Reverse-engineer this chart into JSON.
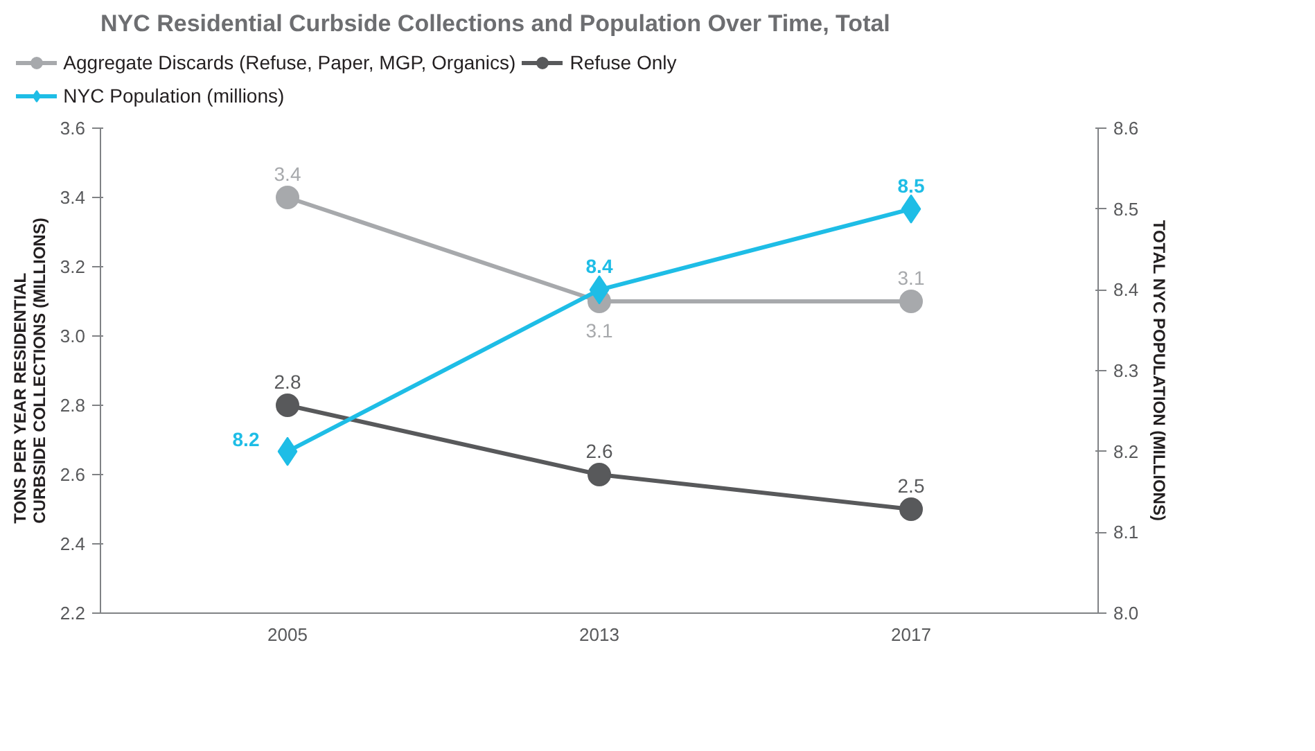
{
  "chart_data": {
    "type": "line",
    "title": "NYC Residential Curbside Collections and Population Over Time, Total",
    "categories": [
      "2005",
      "2013",
      "2017"
    ],
    "series": [
      {
        "name": "Aggregate Discards (Refuse, Paper, MGP, Organics)",
        "color": "#a7a9ac",
        "marker": "circle",
        "values": [
          3.4,
          3.1,
          3.1
        ]
      },
      {
        "name": "Refuse Only",
        "color": "#58595b",
        "marker": "circle",
        "values": [
          2.8,
          2.6,
          2.5
        ]
      },
      {
        "name": "NYC Population (millions)",
        "color": "#1ebde6",
        "marker": "diamond",
        "axis": "y2",
        "values": [
          8.2,
          8.4,
          8.5
        ]
      }
    ],
    "ylabel": "TONS PER YEAR RESIDENTIAL CURBSIDE COLLECTIONS (MILLIONS)",
    "y2label": "TOTAL NYC POPULATION (MILLIONS)",
    "ylim": [
      2.2,
      3.6
    ],
    "yticks": [
      "2.2",
      "2.4",
      "2.6",
      "2.8",
      "3.0",
      "3.2",
      "3.4",
      "3.6"
    ],
    "y2lim": [
      8.0,
      8.6
    ],
    "y2ticks": [
      "8.0",
      "8.1",
      "8.2",
      "8.3",
      "8.4",
      "8.5",
      "8.6"
    ],
    "data_labels": true,
    "legend": "top left",
    "grid": false
  }
}
